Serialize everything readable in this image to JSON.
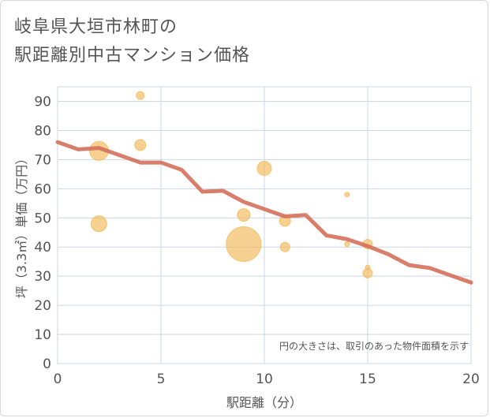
{
  "title_lines": [
    "岐阜県大垣市林町の",
    "駅距離別中古マンション価格"
  ],
  "colors": {
    "background": "#ffffff",
    "grid": "#c9d7e6",
    "axis_text": "#555555",
    "line": "#d4705a",
    "bubble": "#f2b957",
    "note_text": "#555555"
  },
  "chart_data": {
    "type": "scatter",
    "xlabel": "駅距離（分）",
    "ylabel": "坪（3.3㎡）単価（万円）",
    "xlim": [
      0,
      20
    ],
    "ylim": [
      0,
      95
    ],
    "xticks": [
      0,
      5,
      10,
      15,
      20
    ],
    "yticks": [
      0,
      10,
      20,
      30,
      40,
      50,
      60,
      70,
      80,
      90
    ],
    "grid": true,
    "note": "円の大きさは、取引のあった物件面積を示す",
    "bubbles": [
      {
        "x": 2,
        "y": 73,
        "size": 12
      },
      {
        "x": 2,
        "y": 48,
        "size": 10
      },
      {
        "x": 4,
        "y": 92,
        "size": 5
      },
      {
        "x": 4,
        "y": 75,
        "size": 7
      },
      {
        "x": 9,
        "y": 41,
        "size": 22
      },
      {
        "x": 9,
        "y": 51,
        "size": 8
      },
      {
        "x": 10,
        "y": 67,
        "size": 9
      },
      {
        "x": 11,
        "y": 49,
        "size": 7
      },
      {
        "x": 11,
        "y": 40,
        "size": 6
      },
      {
        "x": 14,
        "y": 58,
        "size": 3
      },
      {
        "x": 14,
        "y": 41,
        "size": 3
      },
      {
        "x": 15,
        "y": 41,
        "size": 6
      },
      {
        "x": 15,
        "y": 33,
        "size": 3
      },
      {
        "x": 15,
        "y": 31,
        "size": 6
      }
    ],
    "line": {
      "x": [
        0,
        1,
        2,
        3,
        4,
        5,
        6,
        7,
        8,
        9,
        10,
        11,
        12,
        13,
        14,
        15,
        16,
        17,
        18,
        19,
        20
      ],
      "y": [
        76,
        73.5,
        74,
        71.5,
        69,
        69,
        66.5,
        59,
        59.3,
        55.5,
        53,
        50.5,
        51,
        44,
        42.7,
        40.3,
        37.5,
        33.8,
        32.8,
        30.3,
        27.8
      ]
    }
  }
}
